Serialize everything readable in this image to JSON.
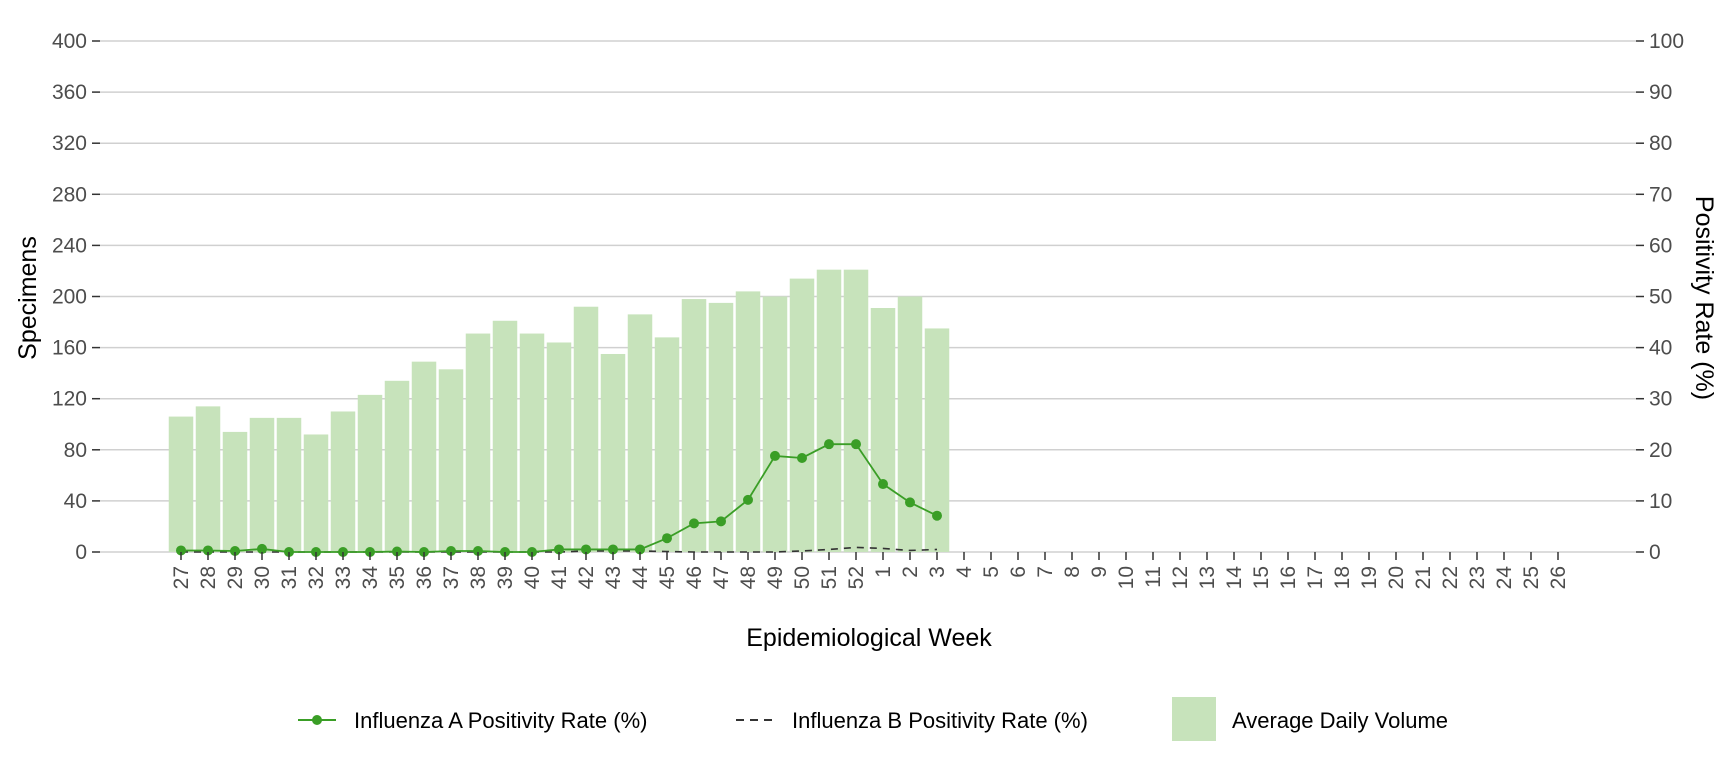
{
  "chart_data": {
    "type": "bar",
    "xlabel": "Epidemiological Week",
    "ylabel": "Specimens",
    "y2label": "Positivity Rate (%)",
    "ylim": [
      0,
      400
    ],
    "y2lim": [
      0,
      100
    ],
    "yticks": [
      "0",
      "40",
      "80",
      "120",
      "160",
      "200",
      "240",
      "280",
      "320",
      "360",
      "400"
    ],
    "y2ticks": [
      "0",
      "10",
      "20",
      "30",
      "40",
      "50",
      "60",
      "70",
      "80",
      "90",
      "100"
    ],
    "grid": "horizontal",
    "legend_position": "bottom",
    "categories": [
      "27",
      "28",
      "29",
      "30",
      "31",
      "32",
      "33",
      "34",
      "35",
      "36",
      "37",
      "38",
      "39",
      "40",
      "41",
      "42",
      "43",
      "44",
      "45",
      "46",
      "47",
      "48",
      "49",
      "50",
      "51",
      "52",
      "1",
      "2",
      "3",
      "4",
      "5",
      "6",
      "7",
      "8",
      "9",
      "10",
      "11",
      "12",
      "13",
      "14",
      "15",
      "16",
      "17",
      "18",
      "19",
      "20",
      "21",
      "22",
      "23",
      "24",
      "25",
      "26"
    ],
    "series": [
      {
        "name": "Average Daily Volume",
        "type": "bar",
        "axis": "left",
        "color": "#c7e3bb",
        "values": [
          106,
          114,
          94,
          105,
          105,
          92,
          110,
          123,
          134,
          149,
          143,
          171,
          181,
          171,
          164,
          192,
          155,
          186,
          168,
          198,
          195,
          204,
          200,
          214,
          221,
          221,
          191,
          200,
          175,
          null,
          null,
          null,
          null,
          null,
          null,
          null,
          null,
          null,
          null,
          null,
          null,
          null,
          null,
          null,
          null,
          null,
          null,
          null,
          null,
          null,
          null,
          null
        ]
      },
      {
        "name": "Influenza A Positivity Rate (%)",
        "type": "line",
        "axis": "right",
        "color": "#3a9e26",
        "marker": "circle",
        "values": [
          0.3,
          0.3,
          0.2,
          0.6,
          0,
          0,
          0,
          0,
          0.1,
          0,
          0.2,
          0.2,
          0,
          0,
          0.5,
          0.5,
          0.5,
          0.5,
          2.7,
          5.6,
          6.0,
          10.2,
          18.8,
          18.4,
          21.1,
          21.1,
          13.3,
          9.7,
          7.1,
          null,
          null,
          null,
          null,
          null,
          null,
          null,
          null,
          null,
          null,
          null,
          null,
          null,
          null,
          null,
          null,
          null,
          null,
          null,
          null,
          null,
          null,
          null
        ]
      },
      {
        "name": "Influenza B Positivity Rate (%)",
        "type": "line",
        "axis": "right",
        "color": "#333333",
        "dash": "dashed",
        "values": [
          0,
          0,
          0,
          0,
          0,
          0,
          0,
          0,
          0,
          0,
          0,
          0,
          0,
          0,
          0,
          0.2,
          0.2,
          0.2,
          0.1,
          0,
          0,
          0,
          0,
          0.2,
          0.5,
          0.9,
          0.7,
          0.3,
          0.5,
          null,
          null,
          null,
          null,
          null,
          null,
          null,
          null,
          null,
          null,
          null,
          null,
          null,
          null,
          null,
          null,
          null,
          null,
          null,
          null,
          null,
          null,
          null
        ]
      }
    ]
  }
}
